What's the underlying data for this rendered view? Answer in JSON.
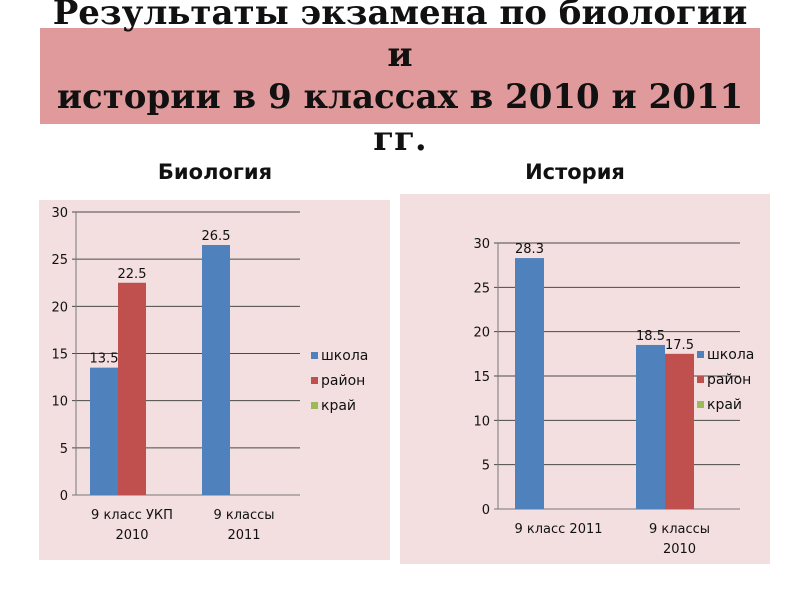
{
  "header": {
    "title_line1": "Результаты экзамена по биологии и",
    "title_line2": "истории в 9 классах в 2010 и 2011 гг."
  },
  "colors": {
    "title_bg": "#e09a9c",
    "panel_bg": "#f3dfe0",
    "school": "#4f81bd",
    "district": "#c0504d",
    "region": "#9bbb59"
  },
  "chart_data": [
    {
      "type": "bar",
      "title": "Биология",
      "categories": [
        [
          "9 класс УКП",
          "2010"
        ],
        [
          "9 классы",
          "2011"
        ]
      ],
      "series": [
        {
          "name": "школа",
          "values": [
            13.5,
            26.5
          ]
        },
        {
          "name": "район",
          "values": [
            22.5,
            null
          ]
        },
        {
          "name": "край",
          "values": [
            null,
            null
          ]
        }
      ],
      "ylim": [
        0,
        30
      ],
      "yticks": [
        0,
        5,
        10,
        15,
        20,
        25,
        30
      ],
      "grid": true,
      "legend": "right"
    },
    {
      "type": "bar",
      "title": "История",
      "categories": [
        [
          "9 класс  2011"
        ],
        [
          "9 классы",
          "2010"
        ]
      ],
      "series": [
        {
          "name": "школа",
          "values": [
            28.3,
            18.5
          ]
        },
        {
          "name": "район",
          "values": [
            null,
            17.5
          ]
        },
        {
          "name": "край",
          "values": [
            null,
            null
          ]
        }
      ],
      "ylim": [
        0,
        30
      ],
      "yticks": [
        0,
        5,
        10,
        15,
        20,
        25,
        30
      ],
      "grid": true,
      "legend": "right"
    }
  ]
}
